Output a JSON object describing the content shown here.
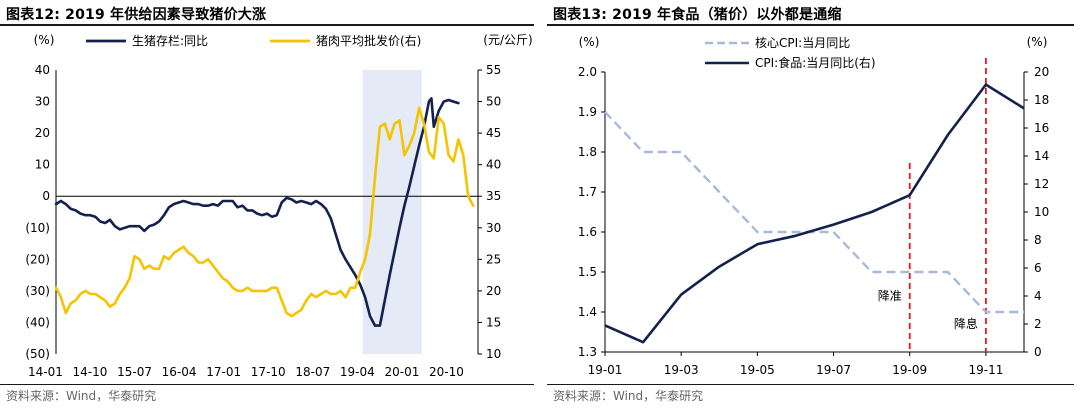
{
  "charts": [
    {
      "title": "图表12:  2019 年供给因素导致猪价大涨",
      "source": "资料来源：Wind，华泰研究",
      "chart_data": {
        "type": "line",
        "left_unit": "(%)",
        "right_unit": "(元/公斤)",
        "left_axis": {
          "ticks": [
            40,
            30,
            20,
            10,
            0,
            -10,
            -20,
            -30,
            -40,
            -50
          ],
          "tick_labels": [
            "40",
            "30",
            "20",
            "10",
            "0",
            "(10)",
            "(20)",
            "(30)",
            "(40)",
            "(50)"
          ],
          "ylim": [
            -50,
            40
          ]
        },
        "right_axis": {
          "ticks": [
            55,
            50,
            45,
            40,
            35,
            30,
            25,
            20,
            15,
            10
          ],
          "tick_labels": [
            "55",
            "50",
            "45",
            "40",
            "35",
            "30",
            "25",
            "20",
            "15",
            "10"
          ],
          "ylim": [
            10,
            55
          ]
        },
        "x_tick_labels": [
          "14-01",
          "14-10",
          "15-07",
          "16-04",
          "17-01",
          "17-10",
          "18-07",
          "19-04",
          "20-01",
          "20-10"
        ],
        "x_range": [
          0,
          86
        ],
        "highlight": {
          "from": 62.5,
          "to": 74.5,
          "color": "#e4eaf6"
        },
        "series": [
          {
            "name": "生猪存栏:同比",
            "axis": "left",
            "color": "#13214f",
            "points": [
              [
                0,
                -2.5
              ],
              [
                1,
                -1.5
              ],
              [
                2,
                -2.5
              ],
              [
                3,
                -4
              ],
              [
                4,
                -4.5
              ],
              [
                5,
                -5.5
              ],
              [
                6,
                -6
              ],
              [
                7,
                -6
              ],
              [
                8,
                -6.5
              ],
              [
                9,
                -8
              ],
              [
                10,
                -8.5
              ],
              [
                11,
                -7.5
              ],
              [
                12,
                -9.5
              ],
              [
                13,
                -10.5
              ],
              [
                14,
                -10
              ],
              [
                15,
                -9.5
              ],
              [
                16,
                -9.5
              ],
              [
                17,
                -9.5
              ],
              [
                18,
                -11
              ],
              [
                19,
                -9.5
              ],
              [
                20,
                -9
              ],
              [
                21,
                -8
              ],
              [
                22,
                -6
              ],
              [
                23,
                -3.5
              ],
              [
                24,
                -2.5
              ],
              [
                25,
                -2
              ],
              [
                26,
                -1.5
              ],
              [
                27,
                -2
              ],
              [
                28,
                -2.5
              ],
              [
                29,
                -2.5
              ],
              [
                30,
                -3
              ],
              [
                31,
                -3
              ],
              [
                32,
                -2.5
              ],
              [
                33,
                -3
              ],
              [
                34,
                -1.5
              ],
              [
                35,
                -1.5
              ],
              [
                36,
                -1.5
              ],
              [
                37,
                -3.5
              ],
              [
                38,
                -3
              ],
              [
                39,
                -4.5
              ],
              [
                40,
                -4.5
              ],
              [
                41,
                -5.5
              ],
              [
                42,
                -6
              ],
              [
                43,
                -5.5
              ],
              [
                44,
                -6.5
              ],
              [
                45,
                -6
              ],
              [
                46,
                -2
              ],
              [
                47,
                -0.5
              ],
              [
                48,
                -1
              ],
              [
                49,
                -2
              ],
              [
                50,
                -1.5
              ],
              [
                51,
                -2
              ],
              [
                52,
                -2.5
              ],
              [
                53,
                -1.5
              ],
              [
                54,
                -2.5
              ],
              [
                55,
                -4
              ],
              [
                56,
                -7
              ],
              [
                57,
                -12
              ],
              [
                58,
                -17
              ],
              [
                59,
                -20
              ],
              [
                60,
                -22.5
              ],
              [
                61,
                -25
              ],
              [
                62,
                -28
              ],
              [
                63,
                -32
              ],
              [
                64,
                -38
              ],
              [
                65,
                -41
              ],
              [
                66,
                -41
              ],
              [
                67,
                -33
              ],
              [
                68,
                -25
              ],
              [
                69,
                -17.5
              ],
              [
                70,
                -10
              ],
              [
                71,
                -3
              ],
              [
                72,
                3
              ],
              [
                73,
                9.5
              ],
              [
                74,
                16
              ],
              [
                75,
                22
              ],
              [
                76,
                30
              ],
              [
                76.5,
                31
              ],
              [
                77,
                22
              ],
              [
                78,
                27
              ],
              [
                79,
                30
              ],
              [
                80,
                30.5
              ],
              [
                81,
                30
              ],
              [
                82,
                29.5
              ]
            ]
          },
          {
            "name": "猪肉平均批发价(右)",
            "axis": "right",
            "color": "#f5c400",
            "points": [
              [
                0,
                20.5
              ],
              [
                1,
                19
              ],
              [
                2,
                16.5
              ],
              [
                3,
                18
              ],
              [
                4,
                18.5
              ],
              [
                5,
                19.5
              ],
              [
                6,
                20
              ],
              [
                7,
                19.5
              ],
              [
                8,
                19.5
              ],
              [
                9,
                19
              ],
              [
                10,
                18.5
              ],
              [
                11,
                17.5
              ],
              [
                12,
                18
              ],
              [
                13,
                19.5
              ],
              [
                14,
                20.5
              ],
              [
                15,
                22
              ],
              [
                16,
                25.5
              ],
              [
                17,
                25
              ],
              [
                18,
                23.5
              ],
              [
                19,
                24
              ],
              [
                20,
                23.5
              ],
              [
                21,
                23.5
              ],
              [
                22,
                25.5
              ],
              [
                23,
                25
              ],
              [
                24,
                26
              ],
              [
                25,
                26.5
              ],
              [
                26,
                27
              ],
              [
                27,
                26
              ],
              [
                28,
                25.5
              ],
              [
                29,
                24.5
              ],
              [
                30,
                24.5
              ],
              [
                31,
                25
              ],
              [
                32,
                24
              ],
              [
                33,
                23
              ],
              [
                34,
                22
              ],
              [
                35,
                21.5
              ],
              [
                36,
                20.5
              ],
              [
                37,
                20
              ],
              [
                38,
                20
              ],
              [
                39,
                20.5
              ],
              [
                40,
                20
              ],
              [
                41,
                20
              ],
              [
                42,
                20
              ],
              [
                43,
                20
              ],
              [
                44,
                20.5
              ],
              [
                45,
                20.5
              ],
              [
                46,
                18.5
              ],
              [
                47,
                16.5
              ],
              [
                48,
                16
              ],
              [
                49,
                16.5
              ],
              [
                50,
                17
              ],
              [
                51,
                18.5
              ],
              [
                52,
                19.5
              ],
              [
                53,
                19
              ],
              [
                54,
                19.5
              ],
              [
                55,
                20
              ],
              [
                56,
                19.5
              ],
              [
                57,
                19.5
              ],
              [
                58,
                20
              ],
              [
                59,
                19
              ],
              [
                60,
                20.5
              ],
              [
                61,
                20.5
              ],
              [
                62,
                23
              ],
              [
                63,
                25
              ],
              [
                64,
                29
              ],
              [
                65,
                38
              ],
              [
                66,
                46
              ],
              [
                67,
                46.5
              ],
              [
                68,
                44
              ],
              [
                69,
                46.5
              ],
              [
                70,
                47
              ],
              [
                71,
                41.5
              ],
              [
                72,
                43
              ],
              [
                73,
                45
              ],
              [
                74,
                49
              ],
              [
                75,
                46.5
              ],
              [
                76,
                42
              ],
              [
                77,
                41
              ],
              [
                78,
                47.5
              ],
              [
                79,
                46.5
              ],
              [
                80,
                41.5
              ],
              [
                81,
                40.5
              ],
              [
                82,
                44
              ],
              [
                83,
                41.5
              ],
              [
                84,
                35
              ],
              [
                85,
                33.5
              ]
            ]
          }
        ]
      }
    },
    {
      "title": "图表13:  2019 年食品（猪价）以外都是通缩",
      "source": "资料来源：Wind，华泰研究",
      "chart_data": {
        "type": "line",
        "left_unit": "(%)",
        "right_unit": "(%)",
        "left_axis": {
          "ticks": [
            2.0,
            1.9,
            1.8,
            1.7,
            1.6,
            1.5,
            1.4,
            1.3
          ],
          "tick_labels": [
            "2.0",
            "1.9",
            "1.8",
            "1.7",
            "1.6",
            "1.5",
            "1.4",
            "1.3"
          ],
          "ylim": [
            1.3,
            2.0
          ]
        },
        "right_axis": {
          "ticks": [
            20,
            18,
            16,
            14,
            12,
            10,
            8,
            6,
            4,
            2,
            0
          ],
          "tick_labels": [
            "20",
            "18",
            "16",
            "14",
            "12",
            "10",
            "8",
            "6",
            "4",
            "2",
            "0"
          ],
          "ylim": [
            0,
            20
          ]
        },
        "x_tick_labels": [
          "19-01",
          "19-03",
          "19-05",
          "19-07",
          "19-09",
          "19-11"
        ],
        "x_range": [
          0,
          11
        ],
        "annotations": [
          {
            "text": "降准",
            "x": 8
          },
          {
            "text": "降息",
            "x": 10
          }
        ],
        "series": [
          {
            "name": "核心CPI:当月同比",
            "axis": "left",
            "color": "#a7b9dd",
            "dashed": true,
            "values": [
              1.9,
              1.8,
              1.8,
              1.7,
              1.6,
              1.6,
              1.6,
              1.5,
              1.5,
              1.5,
              1.4,
              1.4
            ]
          },
          {
            "name": "CPI:食品:当月同比(右)",
            "axis": "right",
            "color": "#13214f",
            "values": [
              1.9,
              0.7,
              4.1,
              6.1,
              7.7,
              8.3,
              9.1,
              10.0,
              11.2,
              15.5,
              19.1,
              17.4
            ]
          }
        ]
      }
    }
  ]
}
